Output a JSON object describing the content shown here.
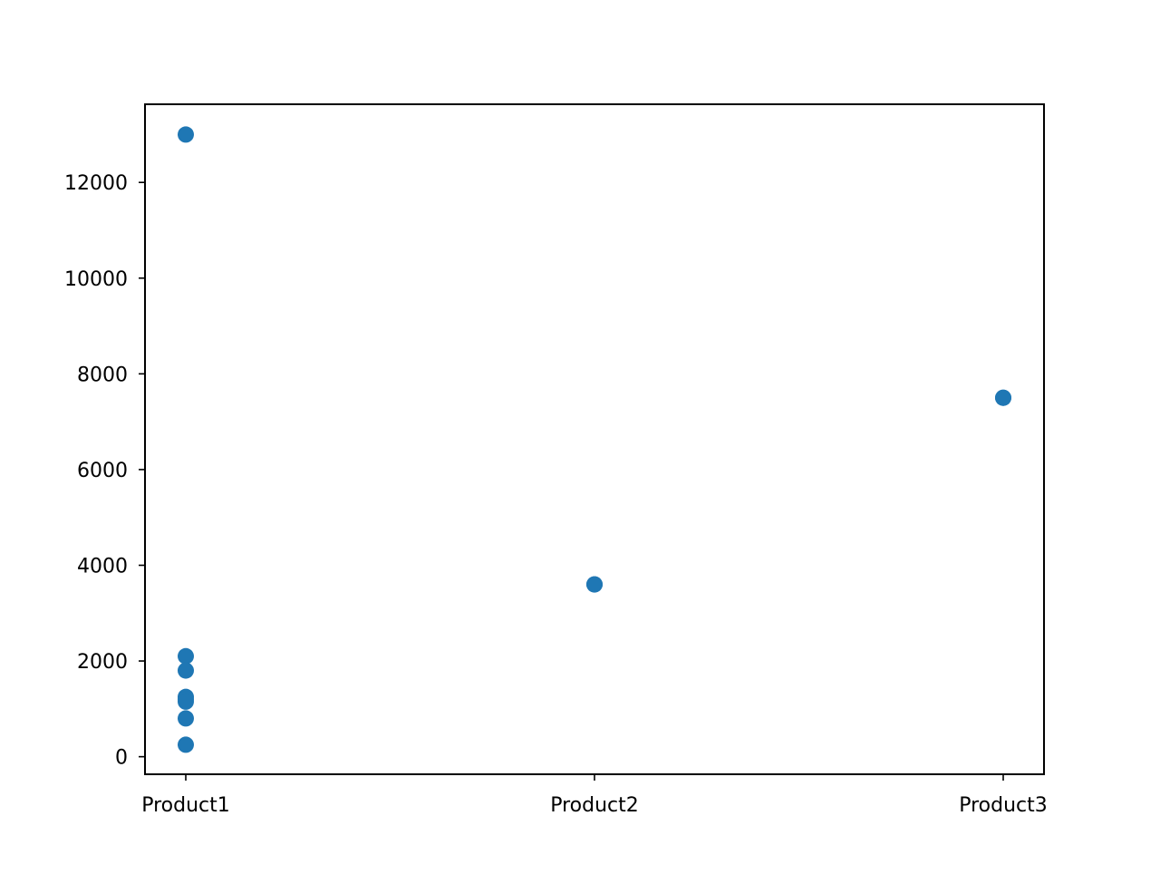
{
  "chart_data": {
    "type": "scatter",
    "title": "",
    "xlabel": "",
    "ylabel": "",
    "categories": [
      "Product1",
      "Product2",
      "Product3"
    ],
    "points": [
      {
        "x": "Product1",
        "y": 13000
      },
      {
        "x": "Product1",
        "y": 2100
      },
      {
        "x": "Product1",
        "y": 1800
      },
      {
        "x": "Product1",
        "y": 1250
      },
      {
        "x": "Product1",
        "y": 1200
      },
      {
        "x": "Product1",
        "y": 1150
      },
      {
        "x": "Product1",
        "y": 800
      },
      {
        "x": "Product1",
        "y": 250
      },
      {
        "x": "Product2",
        "y": 3600
      },
      {
        "x": "Product2",
        "y": 3600
      },
      {
        "x": "Product3",
        "y": 7500
      },
      {
        "x": "Product3",
        "y": 7500
      }
    ],
    "ylim": [
      -367,
      13633
    ],
    "yticks": [
      {
        "value": 0,
        "label": "0"
      },
      {
        "value": 2000,
        "label": "2000"
      },
      {
        "value": 4000,
        "label": "4000"
      },
      {
        "value": 6000,
        "label": "6000"
      },
      {
        "value": 8000,
        "label": "8000"
      },
      {
        "value": 10000,
        "label": "10000"
      },
      {
        "value": 12000,
        "label": "12000"
      }
    ],
    "grid": false,
    "legend": "none",
    "color": "#1f77b4"
  }
}
